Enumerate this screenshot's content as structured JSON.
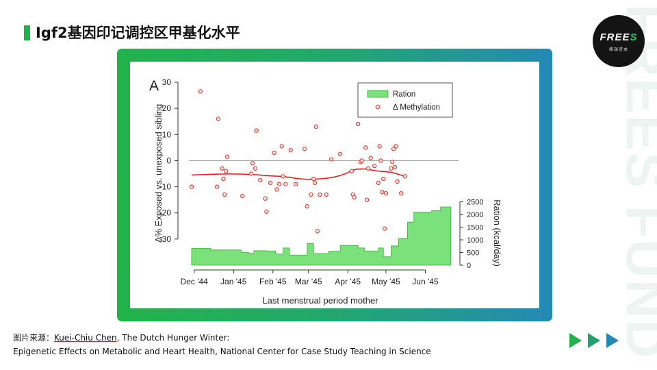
{
  "slide": {
    "title": "Igf2基因印记调控区甲基化水平",
    "logo_text": "FREES",
    "logo_subtext": "峰瑞资本",
    "watermark_text": "FREES FUND",
    "colors": {
      "accent_green": "#22b14c",
      "accent_blue": "#2489b5",
      "logo_bg": "#141414"
    }
  },
  "caption": {
    "label": "图片来源：",
    "author": "Kuei-Chiu Chen",
    "rest_line1": ", The Dutch Hunger Winter:",
    "line2": "Epigenetic Effects on Metabolic and Heart Health, National Center for Case Study Teaching in Science"
  },
  "chart_data": {
    "type": "scatter",
    "panel_label": "A",
    "xlabel": "Last menstrual period mother",
    "ylabel": "Δ% Exposed vs. unexposed sibling",
    "y2label": "Ration (kcal/day)",
    "x_domain": [
      -2,
      206
    ],
    "ylim": [
      -40,
      30
    ],
    "y_ticks": [
      30,
      20,
      10,
      0,
      -10,
      -20,
      -30
    ],
    "y2lim": [
      0,
      2600
    ],
    "y2_ticks": [
      0,
      500,
      1000,
      1500,
      2000,
      2500
    ],
    "x_ticks": [
      {
        "day": 0,
        "label": "Dec '44"
      },
      {
        "day": 31,
        "label": "Jan '45"
      },
      {
        "day": 62,
        "label": "Feb '45"
      },
      {
        "day": 90,
        "label": "Mar '45"
      },
      {
        "day": 121,
        "label": "Apr '45"
      },
      {
        "day": 151,
        "label": "May '45"
      },
      {
        "day": 182,
        "label": "Jun '45"
      }
    ],
    "legend": [
      "Ration",
      "Δ Methylation"
    ],
    "legend_position": "top-right",
    "series": [
      {
        "name": "Δ Methylation",
        "kind": "points",
        "color": "#e0453a",
        "points": [
          [
            -2,
            -10
          ],
          [
            5,
            26.5
          ],
          [
            18,
            -10
          ],
          [
            19,
            16
          ],
          [
            22,
            -3
          ],
          [
            23,
            -7
          ],
          [
            24,
            -13
          ],
          [
            25,
            -4
          ],
          [
            26,
            1.5
          ],
          [
            38,
            -13.5
          ],
          [
            45,
            -5
          ],
          [
            46,
            -1
          ],
          [
            48,
            -3
          ],
          [
            49,
            11.5
          ],
          [
            52,
            -7.5
          ],
          [
            56,
            -14.5
          ],
          [
            57,
            -19.5
          ],
          [
            60,
            -8.5
          ],
          [
            63,
            3
          ],
          [
            65,
            -11
          ],
          [
            67,
            -9
          ],
          [
            69,
            5.5
          ],
          [
            70,
            -6
          ],
          [
            72,
            -9
          ],
          [
            76,
            4
          ],
          [
            80,
            -9
          ],
          [
            87,
            4.5
          ],
          [
            89,
            -17.5
          ],
          [
            92,
            -13
          ],
          [
            94,
            -7
          ],
          [
            95,
            -8.5
          ],
          [
            96,
            13
          ],
          [
            97,
            -27
          ],
          [
            99,
            -13
          ],
          [
            104,
            -13
          ],
          [
            108,
            0.5
          ],
          [
            115,
            2.5
          ],
          [
            124,
            -4
          ],
          [
            125,
            -13
          ],
          [
            126,
            -14
          ],
          [
            129,
            14
          ],
          [
            131,
            -0.5
          ],
          [
            132,
            0
          ],
          [
            135,
            5
          ],
          [
            136,
            -15
          ],
          [
            137,
            -3
          ],
          [
            139,
            1
          ],
          [
            142,
            -2
          ],
          [
            145,
            -8.5
          ],
          [
            146,
            5.5
          ],
          [
            147,
            0
          ],
          [
            148,
            -12
          ],
          [
            149,
            -7
          ],
          [
            150,
            -26
          ],
          [
            151,
            -12.5
          ],
          [
            155,
            -3
          ],
          [
            156,
            -0.5
          ],
          [
            157,
            4.5
          ],
          [
            158,
            -2.5
          ],
          [
            159,
            5.5
          ],
          [
            160,
            -8
          ],
          [
            163,
            -12.5
          ],
          [
            166,
            -6
          ]
        ]
      },
      {
        "name": "Δ Methylation trend",
        "kind": "smooth-line",
        "color": "#e02020",
        "points": [
          [
            -2,
            -5.5
          ],
          [
            15,
            -5.2
          ],
          [
            30,
            -5.1
          ],
          [
            45,
            -5.3
          ],
          [
            60,
            -5.8
          ],
          [
            72,
            -6.2
          ],
          [
            84,
            -7
          ],
          [
            95,
            -7.1
          ],
          [
            108,
            -6.5
          ],
          [
            118,
            -5.2
          ],
          [
            126,
            -3.5
          ],
          [
            134,
            -3.2
          ],
          [
            145,
            -4
          ],
          [
            155,
            -4.5
          ],
          [
            166,
            -6
          ]
        ]
      },
      {
        "name": "Ration",
        "kind": "step-area",
        "axis": "y2",
        "color": "#7be27b",
        "steps": [
          [
            -2,
            670
          ],
          [
            13,
            600
          ],
          [
            37,
            500
          ],
          [
            43,
            470
          ],
          [
            47,
            570
          ],
          [
            57,
            560
          ],
          [
            64,
            440
          ],
          [
            70,
            680
          ],
          [
            75,
            400
          ],
          [
            89,
            860
          ],
          [
            94,
            460
          ],
          [
            106,
            550
          ],
          [
            115,
            780
          ],
          [
            129,
            680
          ],
          [
            134,
            560
          ],
          [
            145,
            680
          ],
          [
            149,
            330
          ],
          [
            155,
            760
          ],
          [
            161,
            1050
          ],
          [
            168,
            1700
          ],
          [
            173,
            2100
          ],
          [
            187,
            2150
          ],
          [
            194,
            2300
          ],
          [
            200,
            2300
          ]
        ]
      }
    ]
  }
}
